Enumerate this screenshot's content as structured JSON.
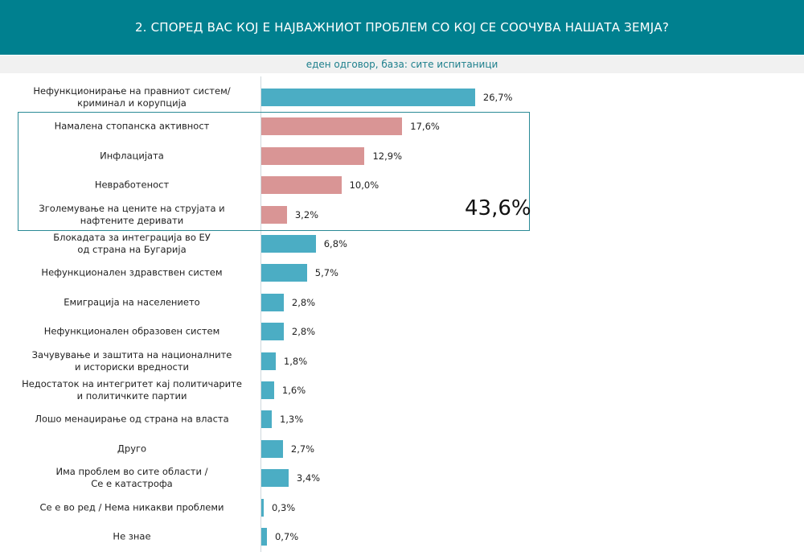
{
  "header": {
    "title": "2. СПОРЕД ВАС КОЈ Е НАЈВАЖНИОТ ПРОБЛЕМ СО КОЈ СЕ СООЧУВА НАШАТА ЗЕМЈА?",
    "subtitle": "еден одговор, база: сите испитаници"
  },
  "colors": {
    "header": "#00808f",
    "default_bar": "#4badc4",
    "highlight_bar": "#d99595"
  },
  "chart_data": {
    "type": "bar",
    "orientation": "horizontal",
    "title": "2. СПОРЕД ВАС КОЈ Е НАЈВАЖНИОТ ПРОБЛЕМ СО КОЈ СЕ СООЧУВА НАШАТА ЗЕМЈА?",
    "subtitle": "еден одговор, база: сите испитаници",
    "categories": [
      "Нефункционирање на правниот систем/ криминал и корупција",
      "Намалена стопанска активност",
      "Инфлацијата",
      "Невработеност",
      "Зголемување на цените на струјата и нафтените деривати",
      "Блокадата за интеграција во ЕУ од страна на Бугарија",
      "Нефункционален здравствен систем",
      "Емиграција на населението",
      "Нефункционален образовен систем",
      "Зачувување и заштита на националните и историски вредности",
      "Недостаток на интегритет кај политичарите и политичките партии",
      "Лошо менаџирање од страна на власта",
      "Друго",
      "Има проблем во сите области / Се е катастрофа",
      "Се е во ред / Нема никакви проблеми",
      "Не знае"
    ],
    "values": [
      26.7,
      17.6,
      12.9,
      10.0,
      3.2,
      6.8,
      5.7,
      2.8,
      2.8,
      1.8,
      1.6,
      1.3,
      2.7,
      3.4,
      0.3,
      0.7
    ],
    "value_labels": [
      "26,7%",
      "17,6%",
      "12,9%",
      "10,0%",
      "3,2%",
      "6,8%",
      "5,7%",
      "2,8%",
      "2,8%",
      "1,8%",
      "1,6%",
      "1,3%",
      "2,7%",
      "3,4%",
      "0,3%",
      "0,7%"
    ],
    "highlighted": [
      1,
      2,
      3,
      4
    ],
    "highlight_total": "43,6%",
    "xlim": [
      0,
      30
    ],
    "grid": false
  }
}
